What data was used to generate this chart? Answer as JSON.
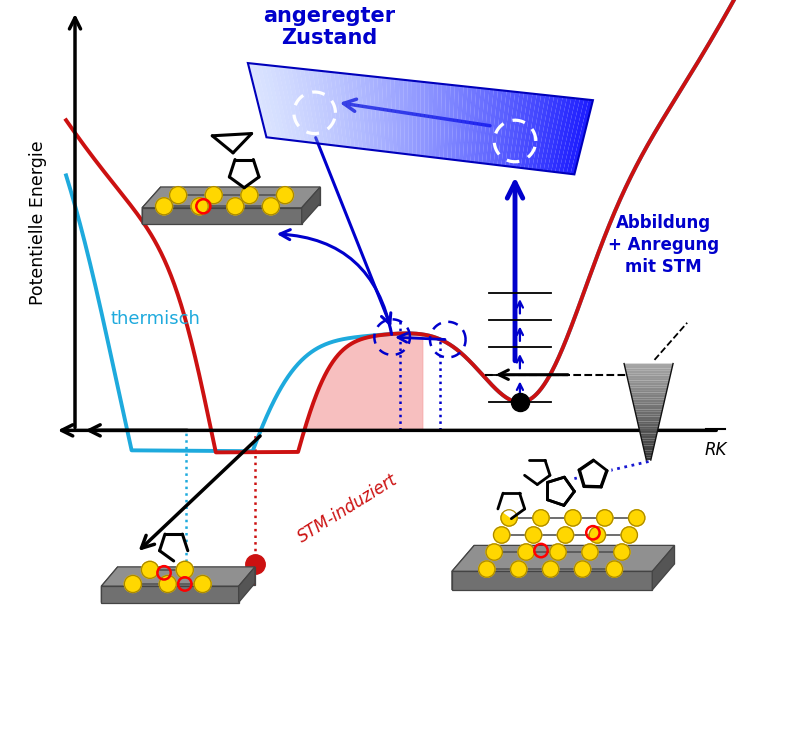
{
  "bg_color": "#ffffff",
  "cyan": "#1EAADD",
  "red": "#CC1111",
  "blue": "#0000CC",
  "dark_blue": "#0000AA",
  "pink_fill": "#F5AAAA",
  "yellow": "#FFD700",
  "yellow_edge": "#AA8800",
  "gray_top": "#909090",
  "gray_side": "#666666",
  "gray_dark": "#444444",
  "blue_surf": "#4499FF",
  "red_surf": "#CC0000",
  "text_angeregter": "angeregter\nZustand",
  "text_thermisch": "thermisch",
  "text_stm_ind": "STM-induziert",
  "text_abbildung": "Abbildung\n+ Anregung\nmit STM",
  "text_rk": "RK",
  "text_pot": "Potentielle Energie",
  "xlim": [
    0,
    10
  ],
  "ylim": [
    0,
    10
  ],
  "y_baseline": 4.2
}
